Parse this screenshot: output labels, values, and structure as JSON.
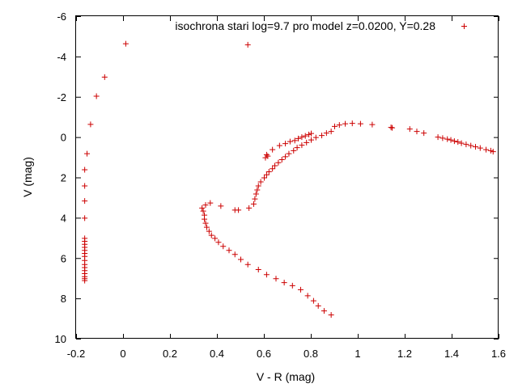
{
  "chart_data": {
    "type": "scatter",
    "title": "",
    "xlabel": "V - R  (mag)",
    "ylabel": "V  (mag)",
    "xlim": [
      -0.2,
      1.6
    ],
    "ylim": [
      10,
      -6
    ],
    "y_inverted": true,
    "grid": false,
    "legend_position": "top-right",
    "x_ticks": [
      "-0.2",
      "0",
      "0.2",
      "0.4",
      "0.6",
      "0.8",
      "1",
      "1.2",
      "1.4",
      "1.6"
    ],
    "y_ticks": [
      "-6",
      "-4",
      "-2",
      "0",
      "2",
      "4",
      "6",
      "8",
      "10"
    ],
    "series": [
      {
        "name": "isochrona stari log=9.7 pro model z=0.0200, Y=0.28",
        "color": "#cc0000",
        "marker": "plus",
        "points": [
          [
            -0.165,
            7.1
          ],
          [
            -0.165,
            7.0
          ],
          [
            -0.165,
            6.9
          ],
          [
            -0.165,
            6.75
          ],
          [
            -0.165,
            6.6
          ],
          [
            -0.165,
            6.45
          ],
          [
            -0.165,
            6.3
          ],
          [
            -0.165,
            6.1
          ],
          [
            -0.165,
            5.9
          ],
          [
            -0.165,
            5.75
          ],
          [
            -0.165,
            5.6
          ],
          [
            -0.165,
            5.45
          ],
          [
            -0.165,
            5.3
          ],
          [
            -0.165,
            5.15
          ],
          [
            -0.165,
            5.0
          ],
          [
            -0.165,
            4.0
          ],
          [
            -0.165,
            3.15
          ],
          [
            -0.165,
            2.4
          ],
          [
            -0.165,
            1.6
          ],
          [
            -0.155,
            0.8
          ],
          [
            -0.14,
            -0.65
          ],
          [
            -0.115,
            -2.05
          ],
          [
            -0.08,
            -3.0
          ],
          [
            0.01,
            -4.65
          ],
          [
            0.53,
            -4.6
          ],
          [
            0.885,
            8.8
          ],
          [
            0.855,
            8.6
          ],
          [
            0.83,
            8.35
          ],
          [
            0.81,
            8.1
          ],
          [
            0.785,
            7.85
          ],
          [
            0.755,
            7.55
          ],
          [
            0.72,
            7.35
          ],
          [
            0.685,
            7.2
          ],
          [
            0.65,
            7.0
          ],
          [
            0.61,
            6.8
          ],
          [
            0.575,
            6.55
          ],
          [
            0.53,
            6.3
          ],
          [
            0.5,
            6.05
          ],
          [
            0.475,
            5.8
          ],
          [
            0.45,
            5.6
          ],
          [
            0.425,
            5.4
          ],
          [
            0.405,
            5.2
          ],
          [
            0.39,
            5.0
          ],
          [
            0.375,
            4.85
          ],
          [
            0.365,
            4.65
          ],
          [
            0.355,
            4.45
          ],
          [
            0.35,
            4.25
          ],
          [
            0.345,
            4.05
          ],
          [
            0.345,
            3.85
          ],
          [
            0.34,
            3.65
          ],
          [
            0.335,
            3.5
          ],
          [
            0.35,
            3.35
          ],
          [
            0.37,
            3.25
          ],
          [
            0.415,
            3.4
          ],
          [
            0.475,
            3.6
          ],
          [
            0.49,
            3.6
          ],
          [
            0.535,
            3.5
          ],
          [
            0.555,
            3.3
          ],
          [
            0.56,
            3.05
          ],
          [
            0.565,
            2.8
          ],
          [
            0.57,
            2.6
          ],
          [
            0.575,
            2.4
          ],
          [
            0.585,
            2.2
          ],
          [
            0.6,
            2.0
          ],
          [
            0.61,
            1.85
          ],
          [
            0.62,
            1.7
          ],
          [
            0.635,
            1.55
          ],
          [
            0.645,
            1.4
          ],
          [
            0.66,
            1.25
          ],
          [
            0.675,
            1.1
          ],
          [
            0.69,
            0.95
          ],
          [
            0.705,
            0.8
          ],
          [
            0.725,
            0.65
          ],
          [
            0.74,
            0.5
          ],
          [
            0.76,
            0.38
          ],
          [
            0.78,
            0.25
          ],
          [
            0.8,
            0.12
          ],
          [
            0.82,
            0.0
          ],
          [
            0.845,
            -0.1
          ],
          [
            0.865,
            -0.22
          ],
          [
            0.885,
            -0.3
          ],
          [
            0.61,
            0.85
          ],
          [
            0.605,
            1.0
          ],
          [
            0.615,
            0.92
          ],
          [
            0.635,
            0.6
          ],
          [
            0.665,
            0.4
          ],
          [
            0.69,
            0.3
          ],
          [
            0.71,
            0.2
          ],
          [
            0.73,
            0.15
          ],
          [
            0.745,
            0.05
          ],
          [
            0.76,
            -0.02
          ],
          [
            0.775,
            -0.08
          ],
          [
            0.79,
            -0.15
          ],
          [
            0.8,
            -0.2
          ],
          [
            0.9,
            -0.55
          ],
          [
            0.92,
            -0.62
          ],
          [
            0.945,
            -0.68
          ],
          [
            0.975,
            -0.7
          ],
          [
            1.01,
            -0.68
          ],
          [
            1.06,
            -0.64
          ],
          [
            1.14,
            -0.5
          ],
          [
            1.145,
            -0.48
          ],
          [
            1.22,
            -0.42
          ],
          [
            1.25,
            -0.3
          ],
          [
            1.28,
            -0.22
          ],
          [
            1.34,
            -0.02
          ],
          [
            1.36,
            0.03
          ],
          [
            1.38,
            0.08
          ],
          [
            1.395,
            0.12
          ],
          [
            1.41,
            0.18
          ],
          [
            1.425,
            0.22
          ],
          [
            1.44,
            0.28
          ],
          [
            1.46,
            0.34
          ],
          [
            1.48,
            0.4
          ],
          [
            1.5,
            0.46
          ],
          [
            1.52,
            0.52
          ],
          [
            1.545,
            0.6
          ],
          [
            1.565,
            0.65
          ],
          [
            1.575,
            0.7
          ]
        ]
      }
    ]
  }
}
